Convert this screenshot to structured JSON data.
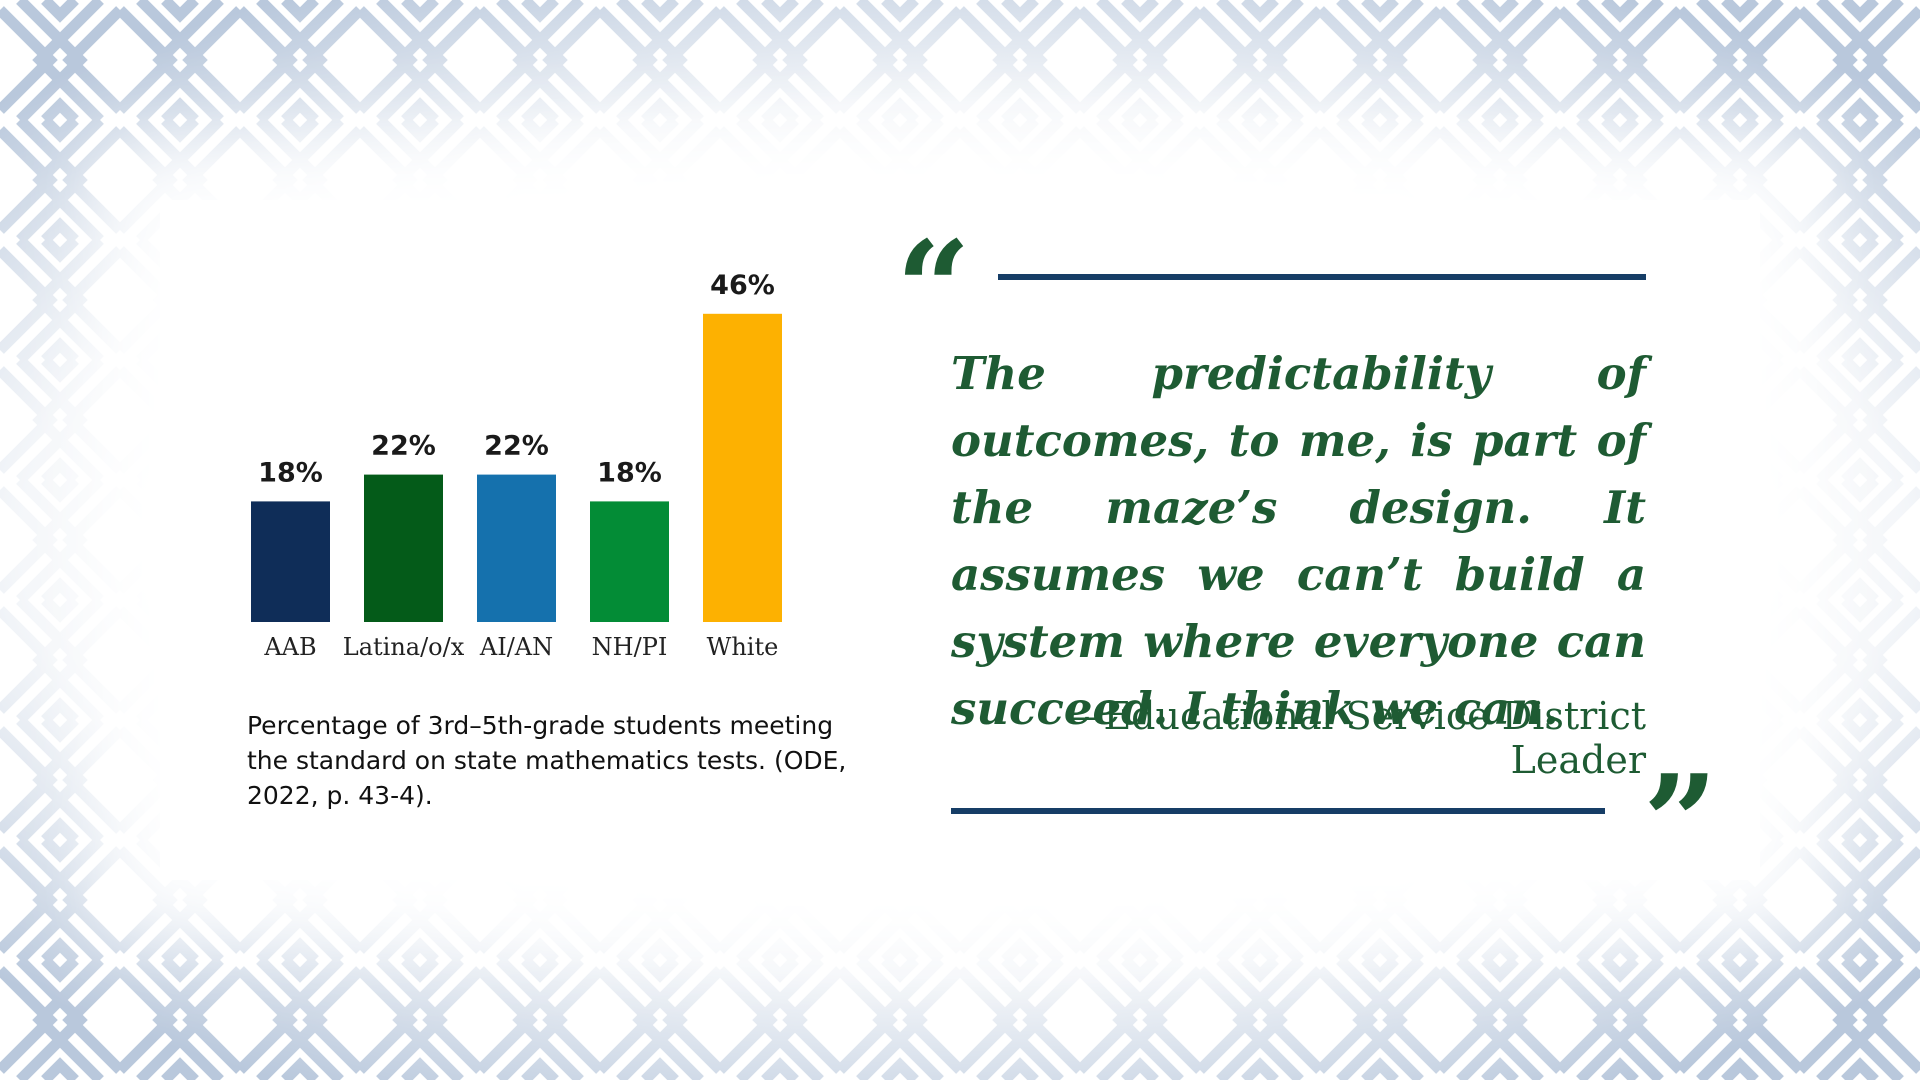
{
  "colors": {
    "navy": "#0f2d58",
    "dark_green": "#045b19",
    "blue": "#1571ad",
    "green": "#038c36",
    "gold": "#fdb101",
    "quote_green": "#1e5b33",
    "rule_navy": "#163d66",
    "pattern": "#b9c8dc"
  },
  "chart_data": {
    "type": "bar",
    "categories": [
      "AAB",
      "Latina/o/x",
      "AI/AN",
      "NH/PI",
      "White"
    ],
    "values": [
      18,
      22,
      22,
      18,
      46
    ],
    "value_labels": [
      "18%",
      "22%",
      "22%",
      "18%",
      "46%"
    ],
    "bar_colors": [
      "#0f2d58",
      "#045b19",
      "#1571ad",
      "#038c36",
      "#fdb101"
    ],
    "title": "",
    "xlabel": "",
    "ylabel": "",
    "grid": false,
    "legend": "none"
  },
  "caption": "Percentage of 3rd–5th-grade students meeting the standard on state mathematics tests. (ODE, 2022, p. 43-4).",
  "quote": {
    "open_mark": "“",
    "close_mark": "”",
    "text": "The predictability of outcomes, to me, is part of the maze’s design. It assumes we can’t build a system where everyone can succeed. I think we can.",
    "attribution": "—Educational Service District Leader"
  }
}
